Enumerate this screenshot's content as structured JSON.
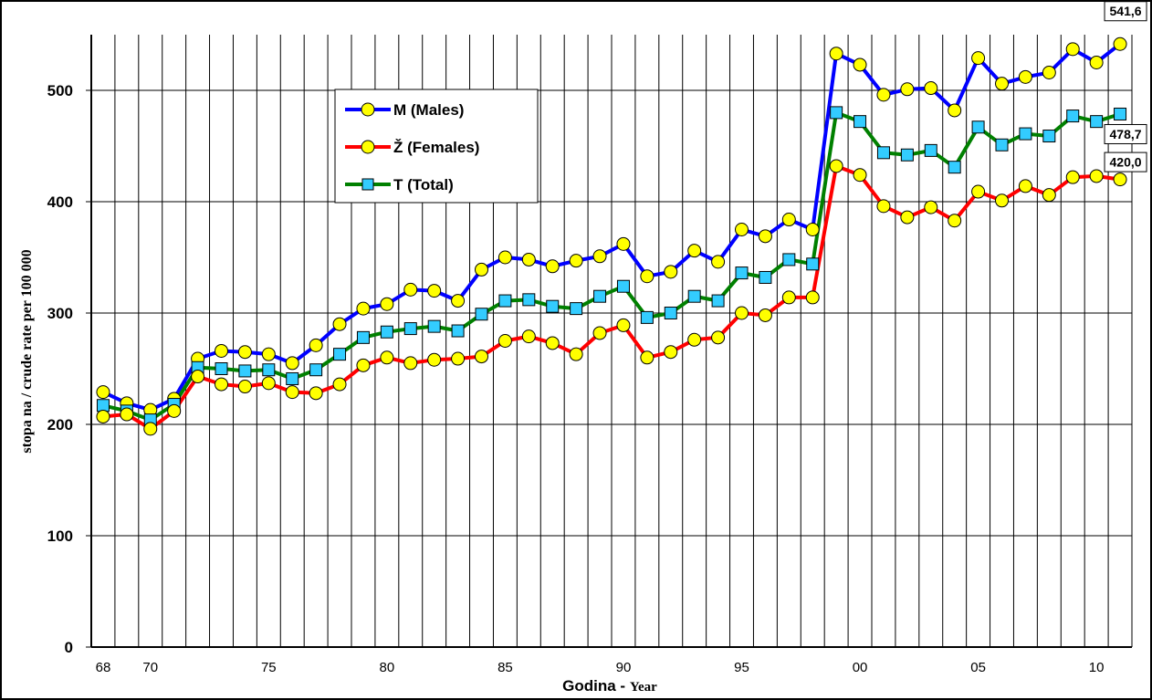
{
  "chart_data": {
    "type": "line",
    "title": "",
    "xlabel_main": "Godina - ",
    "xlabel_sub": "Year",
    "ylabel": "stopa na / crude rate per 100 000",
    "ylim": [
      0,
      550
    ],
    "yticks": [
      0,
      100,
      200,
      300,
      400,
      500
    ],
    "x": [
      1968,
      1969,
      1970,
      1971,
      1972,
      1973,
      1974,
      1975,
      1976,
      1977,
      1978,
      1979,
      1980,
      1981,
      1982,
      1983,
      1984,
      1985,
      1986,
      1987,
      1988,
      1989,
      1990,
      1991,
      1992,
      1993,
      1994,
      1995,
      1996,
      1997,
      1998,
      1999,
      2000,
      2001,
      2002,
      2003,
      2004,
      2005,
      2006,
      2007,
      2008,
      2009,
      2010,
      2011
    ],
    "xtick_labels": [
      {
        "year": 1968,
        "label": "68"
      },
      {
        "year": 1970,
        "label": "70"
      },
      {
        "year": 1975,
        "label": "75"
      },
      {
        "year": 1980,
        "label": "80"
      },
      {
        "year": 1985,
        "label": "85"
      },
      {
        "year": 1990,
        "label": "90"
      },
      {
        "year": 1995,
        "label": "95"
      },
      {
        "year": 2000,
        "label": "00"
      },
      {
        "year": 2005,
        "label": "05"
      },
      {
        "year": 2010,
        "label": "10"
      }
    ],
    "grid": true,
    "legend_position": "top-left",
    "series": [
      {
        "name": "M (Males)",
        "color": "#0000ff",
        "marker": "circle",
        "values": [
          229,
          219,
          213,
          223,
          259,
          266,
          265,
          263,
          255,
          271,
          290,
          304,
          308,
          321,
          320,
          311,
          339,
          350,
          348,
          342,
          347,
          351,
          362,
          333,
          337,
          356,
          346,
          375,
          369,
          384,
          375,
          533,
          523,
          496,
          501,
          502,
          482,
          529,
          506,
          512,
          516,
          537,
          525,
          541.6
        ],
        "end_label": "541,6"
      },
      {
        "name": "Ž (Females)",
        "color": "#ff0000",
        "marker": "circle",
        "values": [
          207,
          209,
          196,
          212,
          243,
          236,
          234,
          237,
          229,
          228,
          236,
          253,
          260,
          255,
          258,
          259,
          261,
          275,
          279,
          273,
          263,
          282,
          289,
          260,
          265,
          276,
          278,
          300,
          298,
          314,
          314,
          432,
          424,
          396,
          386,
          395,
          383,
          409,
          401,
          414,
          406,
          422,
          423,
          420.0
        ],
        "end_label": "420,0"
      },
      {
        "name": "T (Total)",
        "color": "#008000",
        "marker": "square",
        "values": [
          217,
          212,
          204,
          218,
          251,
          250,
          248,
          249,
          241,
          249,
          263,
          278,
          283,
          286,
          288,
          284,
          299,
          311,
          312,
          306,
          304,
          315,
          324,
          296,
          300,
          315,
          311,
          336,
          332,
          348,
          344,
          480,
          472,
          444,
          442,
          446,
          431,
          467,
          451,
          461,
          459,
          477,
          472,
          478.7
        ],
        "end_label": "478,7"
      }
    ]
  }
}
